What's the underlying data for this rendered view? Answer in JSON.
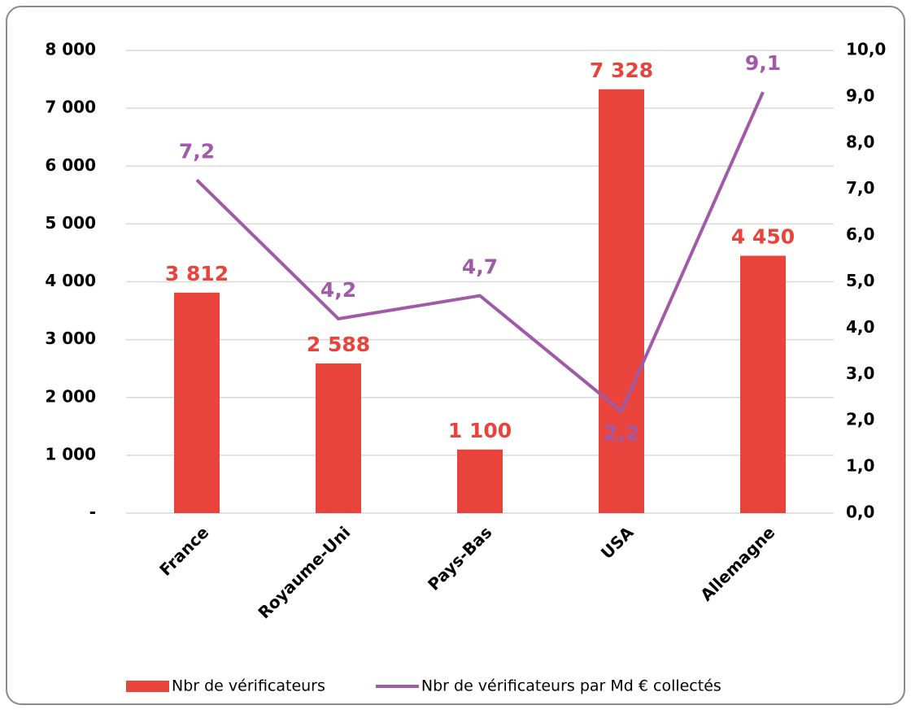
{
  "chart_data": {
    "type": "bar",
    "categories": [
      "France",
      "Royaume-Uni",
      "Pays-Bas",
      "USA",
      "Allemagne"
    ],
    "series": [
      {
        "name": "Nbr de vérificateurs",
        "color": "#e8443c",
        "values": [
          3812,
          2588,
          1100,
          7328,
          4450
        ],
        "value_labels": [
          "3 812",
          "2 588",
          "1 100",
          "7 328",
          "4 450"
        ]
      },
      {
        "name": "Nbr de vérificateurs par Md € collectés",
        "color": "#a05aa8",
        "type": "line",
        "axis": "y2",
        "values": [
          7.2,
          4.2,
          4.7,
          2.2,
          9.1
        ],
        "value_labels": [
          "7,2",
          "4,2",
          "4,7",
          "2,2",
          "9,1"
        ]
      }
    ],
    "ylim": [
      0,
      8000
    ],
    "yticks": [
      {
        "value": 0,
        "label": "-"
      },
      {
        "value": 1000,
        "label": "1 000"
      },
      {
        "value": 2000,
        "label": "2 000"
      },
      {
        "value": 3000,
        "label": "3 000"
      },
      {
        "value": 4000,
        "label": "4 000"
      },
      {
        "value": 5000,
        "label": "5 000"
      },
      {
        "value": 6000,
        "label": "6 000"
      },
      {
        "value": 7000,
        "label": "7 000"
      },
      {
        "value": 8000,
        "label": "8 000"
      }
    ],
    "y2lim": [
      0,
      10
    ],
    "y2ticks": [
      {
        "value": 0,
        "label": "0,0"
      },
      {
        "value": 1,
        "label": "1,0"
      },
      {
        "value": 2,
        "label": "2,0"
      },
      {
        "value": 3,
        "label": "3,0"
      },
      {
        "value": 4,
        "label": "4,0"
      },
      {
        "value": 5,
        "label": "5,0"
      },
      {
        "value": 6,
        "label": "6,0"
      },
      {
        "value": 7,
        "label": "7,0"
      },
      {
        "value": 8,
        "label": "8,0"
      },
      {
        "value": 9,
        "label": "9,0"
      },
      {
        "value": 10,
        "label": "10,0"
      }
    ],
    "grid": true,
    "legend": "bottom"
  }
}
